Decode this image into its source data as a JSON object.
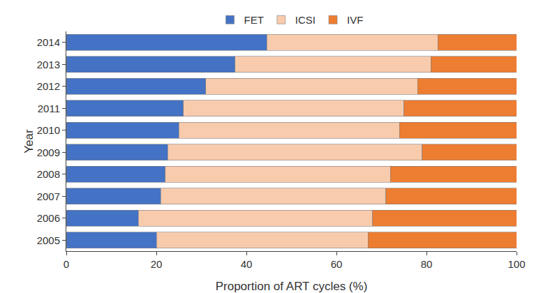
{
  "chart_data": {
    "type": "bar",
    "orientation": "horizontal",
    "stacked": true,
    "categories": [
      "2005",
      "2006",
      "2007",
      "2008",
      "2009",
      "2010",
      "2011",
      "2012",
      "2013",
      "2014"
    ],
    "series": [
      {
        "name": "FET",
        "color": "#4472c4",
        "values": [
          20,
          16,
          21,
          22,
          22.5,
          25,
          26,
          31,
          37.5,
          44.5
        ]
      },
      {
        "name": "ICSI",
        "color": "#f8cbad",
        "values": [
          47,
          52,
          50,
          50,
          56.5,
          49,
          49,
          47,
          43.5,
          38
        ]
      },
      {
        "name": "IVF",
        "color": "#ed7d31",
        "values": [
          33,
          32,
          29,
          28,
          21,
          26,
          25,
          22,
          19,
          17.5
        ]
      }
    ],
    "x_label": "Proportion of ART cycles (%)",
    "y_label": "Year",
    "xlim": [
      0,
      100
    ],
    "xticks": [
      0,
      20,
      40,
      60,
      80,
      100
    ],
    "grid": false,
    "legend": "top"
  }
}
